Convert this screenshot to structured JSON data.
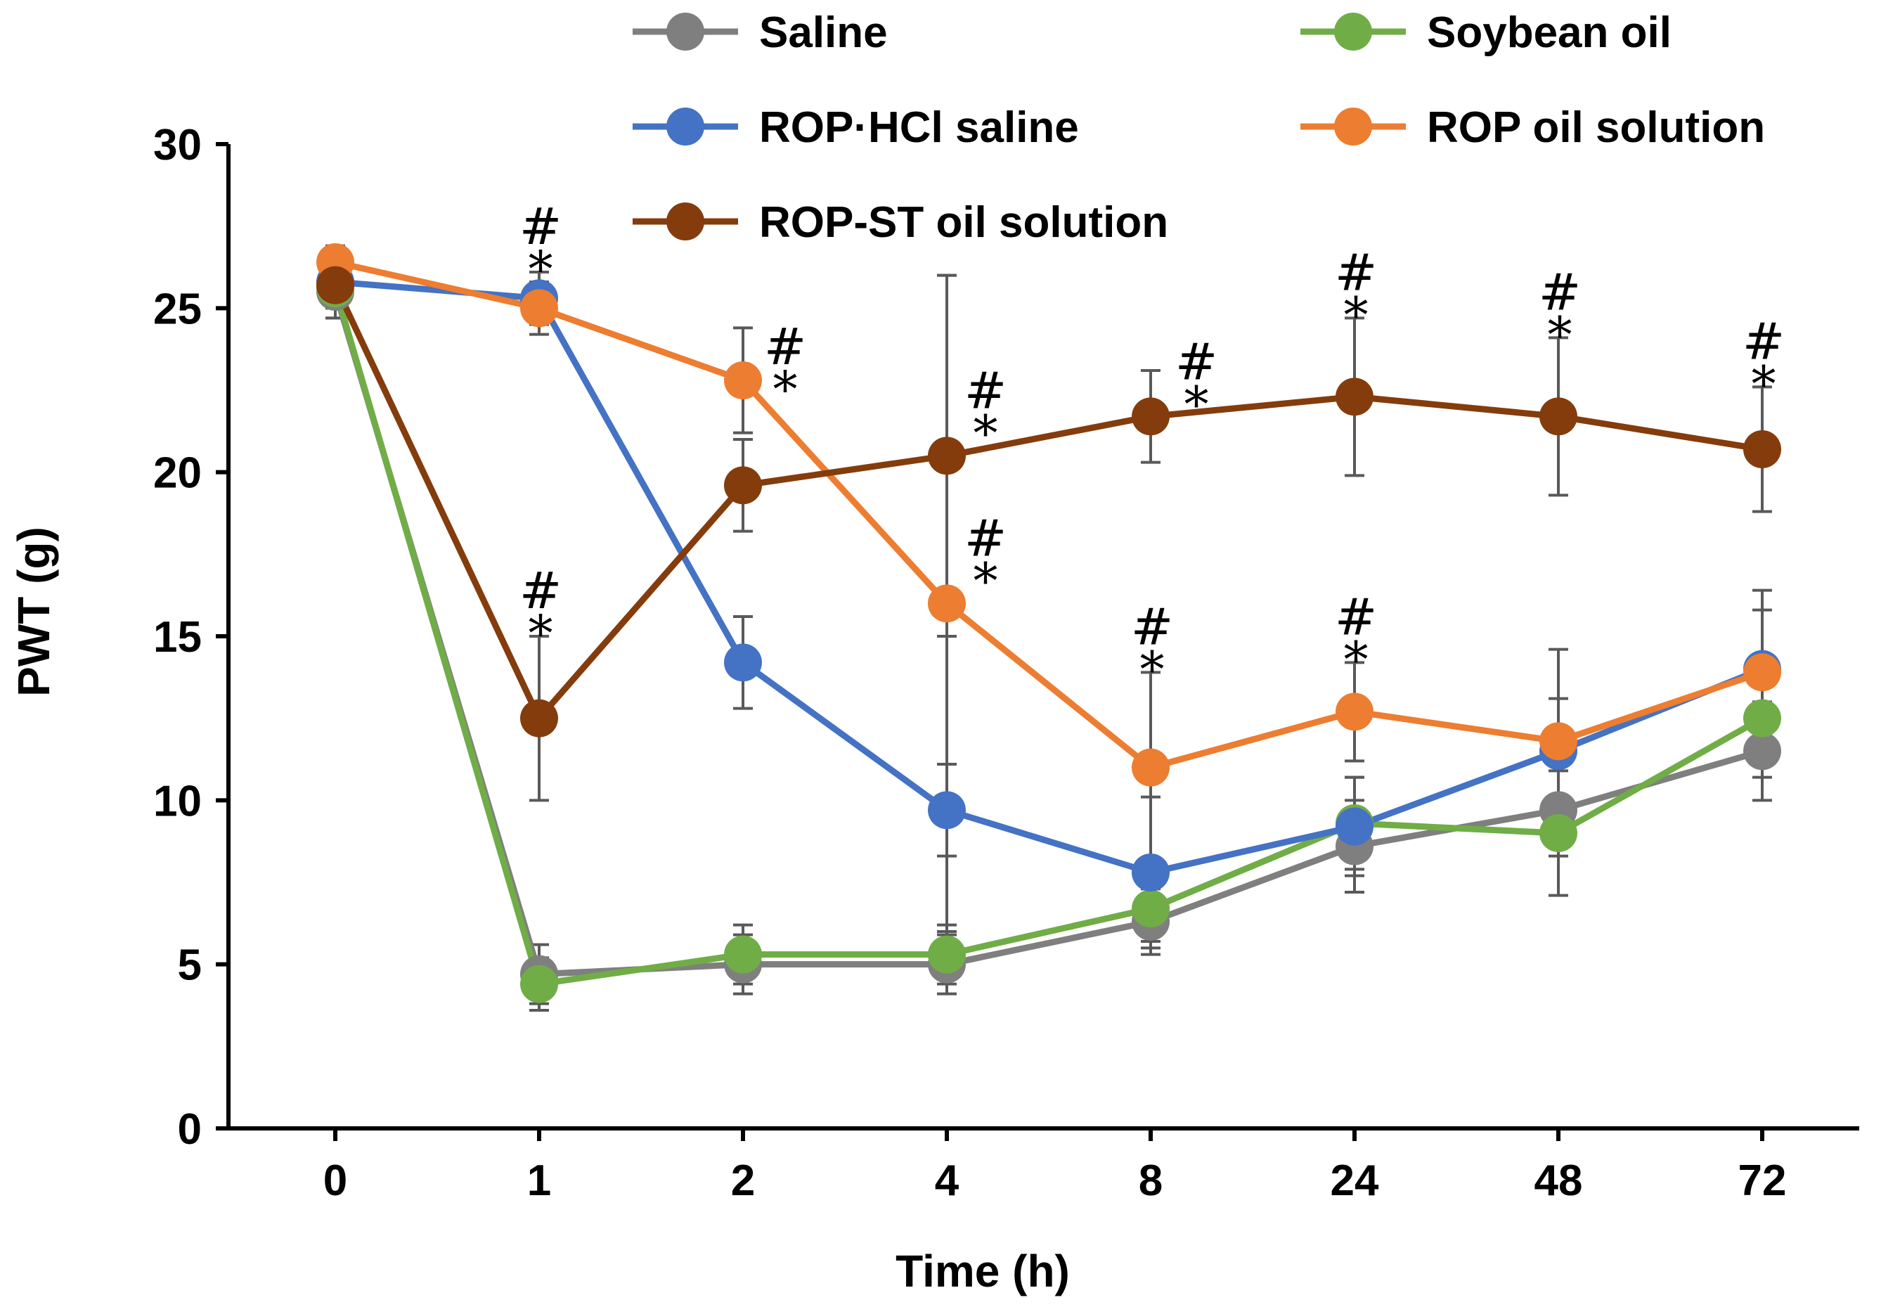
{
  "chart_data": {
    "type": "line",
    "xlabel": "Time (h)",
    "ylabel": "PWT (g)",
    "categories": [
      "0",
      "1",
      "2",
      "4",
      "8",
      "24",
      "48",
      "72"
    ],
    "ylim": [
      0,
      30
    ],
    "yticks": [
      "0",
      "5",
      "10",
      "15",
      "20",
      "25",
      "30"
    ],
    "grid": false,
    "legend_position": "top",
    "series": [
      {
        "name": "Saline",
        "color": "#7f7f7f",
        "values": [
          25.5,
          4.7,
          5.0,
          5.0,
          6.3,
          8.6,
          9.7,
          11.5
        ],
        "errors": [
          0.8,
          0.9,
          0.9,
          0.9,
          1.0,
          1.4,
          1.4,
          1.5
        ]
      },
      {
        "name": "Soybean oil",
        "color": "#70ad47",
        "values": [
          25.6,
          4.4,
          5.3,
          5.3,
          6.7,
          9.3,
          9.0,
          12.5
        ],
        "errors": [
          0.9,
          0.8,
          0.9,
          0.9,
          1.0,
          1.4,
          1.9,
          1.8
        ]
      },
      {
        "name": "ROP·HCl saline",
        "color": "#4472c4",
        "values": [
          25.8,
          25.3,
          14.2,
          9.7,
          7.8,
          9.2,
          11.5,
          14.0
        ],
        "errors": [
          0.5,
          0.8,
          1.4,
          1.4,
          2.3,
          1.5,
          1.6,
          1.8
        ]
      },
      {
        "name": "ROP oil solution",
        "color": "#ed7d31",
        "values": [
          26.4,
          25.0,
          22.8,
          16.0,
          11.0,
          12.7,
          11.8,
          13.9
        ],
        "errors": [
          0.5,
          0.8,
          1.6,
          10.0,
          2.9,
          1.5,
          2.8,
          2.5
        ]
      },
      {
        "name": "ROP-ST oil solution",
        "color": "#843c0c",
        "values": [
          25.7,
          12.5,
          19.6,
          20.5,
          21.7,
          22.3,
          21.7,
          20.7
        ],
        "errors": [
          0.7,
          2.5,
          1.4,
          5.5,
          1.4,
          2.4,
          2.4,
          1.9
        ]
      }
    ],
    "annotations": [
      {
        "category": "1",
        "series": "ROP·HCl saline",
        "hash": "#",
        "star": "*"
      },
      {
        "category": "1",
        "series": "ROP-ST oil solution",
        "hash": "#",
        "star": "*"
      },
      {
        "category": "2",
        "series": "ROP oil solution",
        "hash": "#",
        "star": "*"
      },
      {
        "category": "4",
        "series": "ROP-ST oil solution",
        "hash": "#",
        "star": "*"
      },
      {
        "category": "4",
        "series": "ROP oil solution",
        "hash": "#",
        "star": "*"
      },
      {
        "category": "8",
        "series": "ROP-ST oil solution",
        "hash": "#",
        "star": "*"
      },
      {
        "category": "8",
        "series": "ROP oil solution",
        "hash": "#",
        "star": "*"
      },
      {
        "category": "24",
        "series": "ROP-ST oil solution",
        "hash": "#",
        "star": "*"
      },
      {
        "category": "24",
        "series": "ROP oil solution",
        "hash": "#",
        "star": "*"
      },
      {
        "category": "48",
        "series": "ROP-ST oil solution",
        "hash": "#",
        "star": "*"
      },
      {
        "category": "72",
        "series": "ROP-ST oil solution",
        "hash": "#",
        "star": "*"
      }
    ]
  }
}
